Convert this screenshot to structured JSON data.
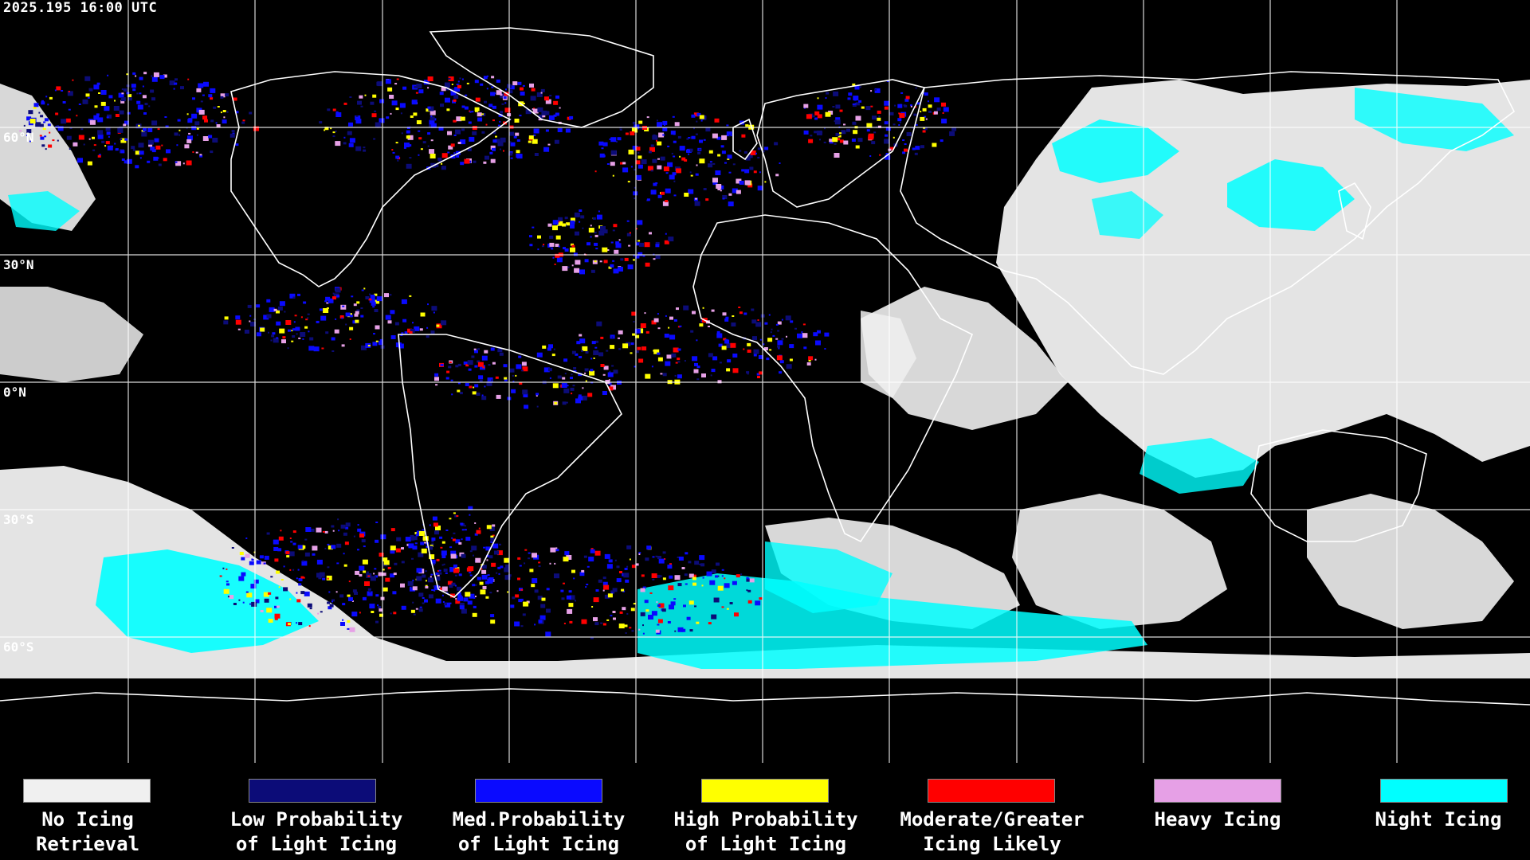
{
  "timestamp": "2025.195 16:00 UTC",
  "latitude_labels": [
    "60°N",
    "30°N",
    "0°N",
    "30°S",
    "60°S"
  ],
  "legend": [
    {
      "line1": "No Icing",
      "line2": "Retrieval",
      "color": "#f0f0f0"
    },
    {
      "line1": "Low Probability",
      "line2": "of Light Icing",
      "color": "#0c0c78"
    },
    {
      "line1": "Med.Probability",
      "line2": "of Light Icing",
      "color": "#0a0aff"
    },
    {
      "line1": "High Probability",
      "line2": "of Light Icing",
      "color": "#ffff00"
    },
    {
      "line1": "Moderate/Greater",
      "line2": "Icing Likely",
      "color": "#ff0000"
    },
    {
      "line1": "Heavy Icing",
      "line2": "",
      "color": "#e6a0e6"
    },
    {
      "line1": "Night Icing",
      "line2": "",
      "color": "#00ffff"
    }
  ],
  "colors": {
    "no_icing": "#f0f0f0",
    "low": "#0c0c78",
    "med": "#0a0aff",
    "high": "#ffff00",
    "moderate": "#ff0000",
    "heavy": "#e6a0e6",
    "night": "#00ffff",
    "background": "#000000",
    "grid": "#ffffff"
  }
}
